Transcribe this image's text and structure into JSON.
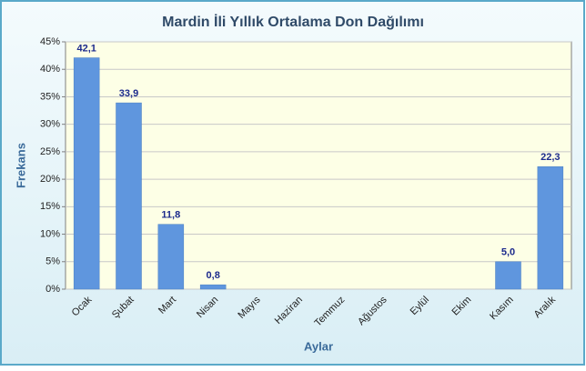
{
  "chart_data": {
    "type": "bar",
    "title": "Mardin İli Yıllık Ortalama Don Dağılımı",
    "x_label": "Aylar",
    "y_label": "Frekans",
    "categories": [
      "Ocak",
      "Şubat",
      "Mart",
      "Nisan",
      "Mayıs",
      "Haziran",
      "Temmuz",
      "Ağustos",
      "Eylül",
      "Ekim",
      "Kasım",
      "Aralık"
    ],
    "values": [
      42.1,
      33.9,
      11.8,
      0.8,
      0,
      0,
      0,
      0,
      0,
      0,
      5.0,
      22.3
    ],
    "value_labels": [
      "42,1",
      "33,9",
      "11,8",
      "0,8",
      null,
      null,
      null,
      null,
      null,
      null,
      "5,0",
      "22,3"
    ],
    "color": "#5f96de",
    "ylim": [
      0,
      45
    ],
    "yticks": [
      {
        "value": 0,
        "label": "0%"
      },
      {
        "value": 5,
        "label": "5%"
      },
      {
        "value": 10,
        "label": "10%"
      },
      {
        "value": 15,
        "label": "15%"
      },
      {
        "value": 20,
        "label": "20%"
      },
      {
        "value": 25,
        "label": "25%"
      },
      {
        "value": 30,
        "label": "30%"
      },
      {
        "value": 35,
        "label": "35%"
      },
      {
        "value": 40,
        "label": "40%"
      },
      {
        "value": 45,
        "label": "45%"
      }
    ],
    "grid": true
  }
}
